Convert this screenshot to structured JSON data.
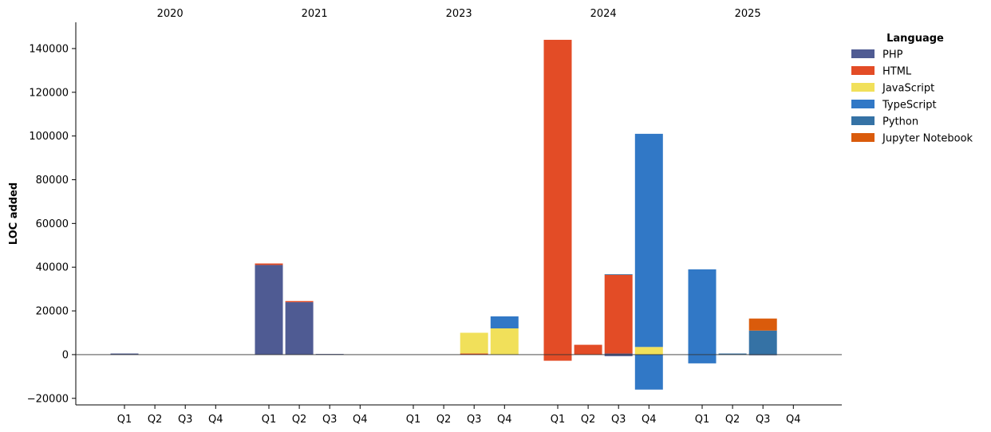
{
  "chart_data": {
    "type": "bar",
    "stacked": true,
    "ylabel": "LOC added",
    "xlabel": "",
    "ylim": [
      -23000,
      152000
    ],
    "yticks": [
      -20000,
      0,
      20000,
      40000,
      60000,
      80000,
      100000,
      120000,
      140000
    ],
    "ytick_labels": [
      "−20000",
      "0",
      "20000",
      "40000",
      "60000",
      "80000",
      "100000",
      "120000",
      "140000"
    ],
    "quarters": [
      "Q1",
      "Q2",
      "Q3",
      "Q4"
    ],
    "years": [
      "2020",
      "2021",
      "2023",
      "2024",
      "2025"
    ],
    "legend": {
      "title": "Language",
      "position": "top-right outside"
    },
    "series": [
      {
        "name": "PHP",
        "color": "#4f5b93",
        "values": [
          [
            500,
            0,
            0,
            0
          ],
          [
            41000,
            24000,
            300,
            0
          ],
          [
            0,
            0,
            0,
            0
          ],
          [
            0,
            0,
            500,
            0
          ],
          [
            0,
            0,
            0,
            0
          ]
        ]
      },
      {
        "name": "HTML",
        "color": "#e34c26",
        "values": [
          [
            0,
            0,
            0,
            0
          ],
          [
            700,
            500,
            0,
            0
          ],
          [
            0,
            0,
            500,
            0
          ],
          [
            144000,
            4500,
            36000,
            0
          ],
          [
            0,
            0,
            0,
            0
          ]
        ]
      },
      {
        "name": "JavaScript",
        "color": "#f1e05a",
        "values": [
          [
            0,
            0,
            0,
            0
          ],
          [
            0,
            0,
            0,
            0
          ],
          [
            0,
            0,
            9500,
            12000
          ],
          [
            0,
            0,
            0,
            3500
          ],
          [
            0,
            0,
            0,
            0
          ]
        ]
      },
      {
        "name": "TypeScript",
        "color": "#3178c6",
        "values": [
          [
            0,
            0,
            0,
            0
          ],
          [
            0,
            0,
            0,
            0
          ],
          [
            0,
            0,
            0,
            5500
          ],
          [
            0,
            0,
            0,
            97500
          ],
          [
            39000,
            0,
            0,
            0
          ]
        ]
      },
      {
        "name": "Python",
        "color": "#3572a5",
        "values": [
          [
            0,
            0,
            0,
            0
          ],
          [
            0,
            0,
            0,
            0
          ],
          [
            0,
            0,
            0,
            0
          ],
          [
            0,
            0,
            300,
            0
          ],
          [
            0,
            500,
            11000,
            0
          ]
        ]
      },
      {
        "name": "Jupyter Notebook",
        "color": "#da5b0b",
        "values": [
          [
            0,
            0,
            0,
            0
          ],
          [
            0,
            0,
            0,
            0
          ],
          [
            0,
            0,
            0,
            0
          ],
          [
            0,
            0,
            0,
            0
          ],
          [
            0,
            0,
            5500,
            0
          ]
        ]
      }
    ],
    "negative_series": [
      {
        "name": "PHP",
        "color": "#4f5b93",
        "values": [
          [
            0,
            0,
            0,
            0
          ],
          [
            0,
            0,
            0,
            0
          ],
          [
            0,
            0,
            0,
            0
          ],
          [
            0,
            0,
            -700,
            0
          ],
          [
            0,
            0,
            -300,
            0
          ]
        ]
      },
      {
        "name": "HTML",
        "color": "#e34c26",
        "values": [
          [
            0,
            0,
            0,
            0
          ],
          [
            0,
            0,
            0,
            0
          ],
          [
            0,
            0,
            0,
            0
          ],
          [
            -2800,
            0,
            0,
            0
          ],
          [
            0,
            0,
            0,
            0
          ]
        ]
      },
      {
        "name": "TypeScript",
        "color": "#3178c6",
        "values": [
          [
            0,
            0,
            0,
            0
          ],
          [
            0,
            0,
            0,
            0
          ],
          [
            0,
            0,
            0,
            0
          ],
          [
            0,
            0,
            0,
            -16000
          ],
          [
            -4000,
            0,
            0,
            0
          ]
        ]
      }
    ]
  }
}
